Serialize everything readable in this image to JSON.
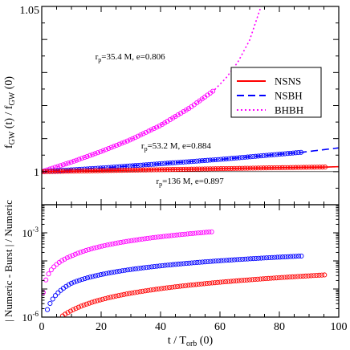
{
  "chart_data": [
    {
      "type": "line",
      "panel": "top",
      "ylabel": "f_GW (t) / f_GW (0)",
      "ylabel_parts": {
        "main": "f",
        "sub1": "GW",
        "mid": " (t) / f",
        "sub2": "GW",
        "end": " (0)"
      },
      "xlim": [
        0,
        100
      ],
      "ylim": [
        0.99,
        1.05
      ],
      "ytick_labels": [
        {
          "value": 1.0,
          "label": "1"
        },
        {
          "value": 1.05,
          "label": "1.05"
        }
      ],
      "legend": {
        "placement": "right",
        "entries": [
          {
            "label": "NSNS",
            "color": "#ff0000",
            "dash": "solid"
          },
          {
            "label": "NSBH",
            "color": "#0000ff",
            "dash": "dashed"
          },
          {
            "label": "BHBH",
            "color": "#ff00ff",
            "dash": "dotted"
          }
        ]
      },
      "annotations": [
        {
          "text_r": "r",
          "text_sub": "p",
          "text_rest": "=35.4 M, e=0.806",
          "x": 18,
          "y": 1.034
        },
        {
          "text_r": "r",
          "text_sub": "p",
          "text_rest": "=53.2 M, e=0.884",
          "x": 33.5,
          "y": 1.007
        },
        {
          "text_r": "r",
          "text_sub": "p",
          "text_rest": "=136 M, e=0.897",
          "x": 38.5,
          "y": 0.9963
        }
      ],
      "series": [
        {
          "system": "BHBH",
          "color": "#ff00ff",
          "dash": "dotted",
          "curve_x": [
            0,
            10,
            20,
            30,
            40,
            50,
            58,
            62,
            66,
            70,
            74
          ],
          "curve_y": [
            1.0,
            1.0029,
            1.0061,
            1.0097,
            1.014,
            1.0194,
            1.0246,
            1.0283,
            1.0331,
            1.0398,
            1.0505
          ],
          "marker_xmax": 58
        },
        {
          "system": "NSBH",
          "color": "#0000ff",
          "dash": "dashed",
          "curve_x": [
            0,
            20,
            40,
            60,
            88,
            100
          ],
          "curve_y": [
            1.0,
            1.0011,
            1.0024,
            1.0037,
            1.0059,
            1.0072
          ],
          "marker_xmax": 88
        },
        {
          "system": "NSNS",
          "color": "#ff0000",
          "dash": "solid",
          "curve_x": [
            0,
            20,
            40,
            60,
            80,
            96,
            100
          ],
          "curve_y": [
            1.0,
            1.0003,
            1.0006,
            1.0009,
            1.0012,
            1.0014,
            1.0015
          ],
          "marker_xmax": 96
        }
      ]
    },
    {
      "type": "scatter",
      "panel": "bottom",
      "ylabel": "| Numeric - Burst | / Numeric",
      "xlabel": "t / T_orb (0)",
      "xlabel_parts": {
        "main": "t / T",
        "sub": "orb",
        "end": " (0)"
      },
      "xlim": [
        0,
        100
      ],
      "yscale": "log",
      "ylim": [
        1e-06,
        0.01
      ],
      "xtick_labels": [
        "0",
        "20",
        "40",
        "60",
        "80",
        "100"
      ],
      "ytick_labels": [
        {
          "value": 0.001,
          "base": "10",
          "exp": "-3"
        },
        {
          "value": 1e-06,
          "base": "10",
          "exp": "-6"
        }
      ],
      "series": [
        {
          "system": "BHBH",
          "color": "#ff00ff",
          "x_start": 0.5,
          "x_end": 58,
          "y_at_1": 1.5e-05,
          "y_at_10": 0.00015,
          "y_at_58": 0.0011
        },
        {
          "system": "NSBH",
          "color": "#0000ff",
          "x_start": 1,
          "x_end": 88,
          "y_at_1": 8e-07,
          "y_at_10": 1.6e-05,
          "y_at_88": 0.00015
        },
        {
          "system": "NSNS",
          "color": "#ff0000",
          "x_start": 7,
          "x_end": 96,
          "y_at_1": 1e-07,
          "y_at_10": 1.7e-06,
          "y_at_96": 3.2e-05
        }
      ]
    }
  ]
}
